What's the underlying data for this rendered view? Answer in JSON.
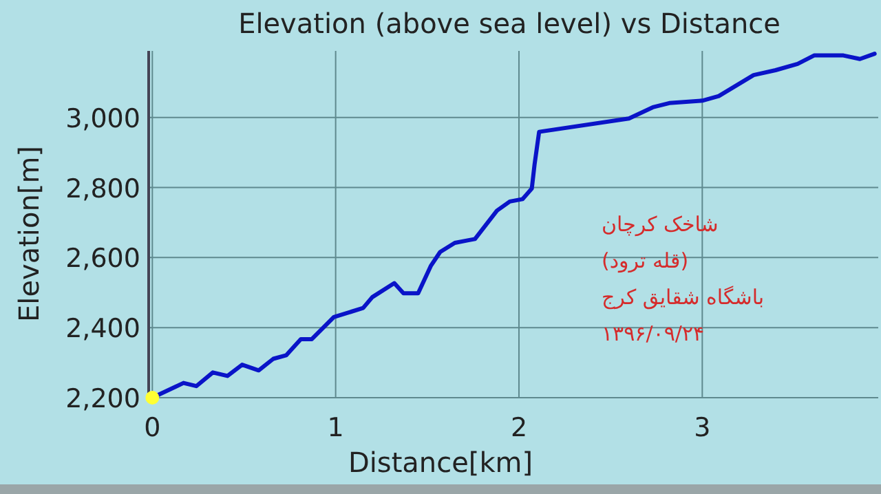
{
  "chart_data": {
    "type": "line",
    "title": "Elevation (above sea level) vs Distance",
    "xlabel": "Distance[km]",
    "ylabel": "Elevation[m]",
    "xlim": [
      -0.02,
      3.96
    ],
    "ylim": [
      2200,
      3190
    ],
    "xticks": [
      0,
      1,
      2,
      3
    ],
    "yticks": [
      {
        "value": 2200,
        "label": "2,200"
      },
      {
        "value": 2400,
        "label": "2,400"
      },
      {
        "value": 2600,
        "label": "2,600"
      },
      {
        "value": 2800,
        "label": "2,800"
      },
      {
        "value": 3000,
        "label": "3,000"
      }
    ],
    "grid": true,
    "series": [
      {
        "color": "#0a14c8",
        "x": [
          0,
          0.17,
          0.24,
          0.33,
          0.41,
          0.49,
          0.58,
          0.66,
          0.73,
          0.81,
          0.87,
          0.99,
          1.15,
          1.2,
          1.32,
          1.37,
          1.45,
          1.52,
          1.57,
          1.65,
          1.72,
          1.76,
          1.88,
          1.95,
          2.02,
          2.07,
          2.085,
          2.11,
          2.6,
          2.73,
          2.82,
          3.0,
          3.09,
          3.28,
          3.4,
          3.52,
          3.61,
          3.77,
          3.86,
          3.94
        ],
        "values": [
          2200,
          2242,
          2233,
          2272,
          2262,
          2294,
          2278,
          2311,
          2321,
          2367,
          2367,
          2430,
          2456,
          2487,
          2527,
          2498,
          2498,
          2577,
          2616,
          2642,
          2649,
          2653,
          2734,
          2760,
          2767,
          2797,
          2865,
          2959,
          2997,
          3029,
          3041,
          3048,
          3061,
          3121,
          3135,
          3153,
          3177,
          3177,
          3167,
          3182
        ]
      },
      {
        "type": "scatter",
        "color": "#ffff33",
        "x": [
          0
        ],
        "values": [
          2200
        ]
      }
    ],
    "annotations": [
      "شاخک کرچان",
      "(قله ترود)",
      "باشگاه شقایق کرج",
      "۱۳۹۶/۰۹/۲۴"
    ]
  }
}
